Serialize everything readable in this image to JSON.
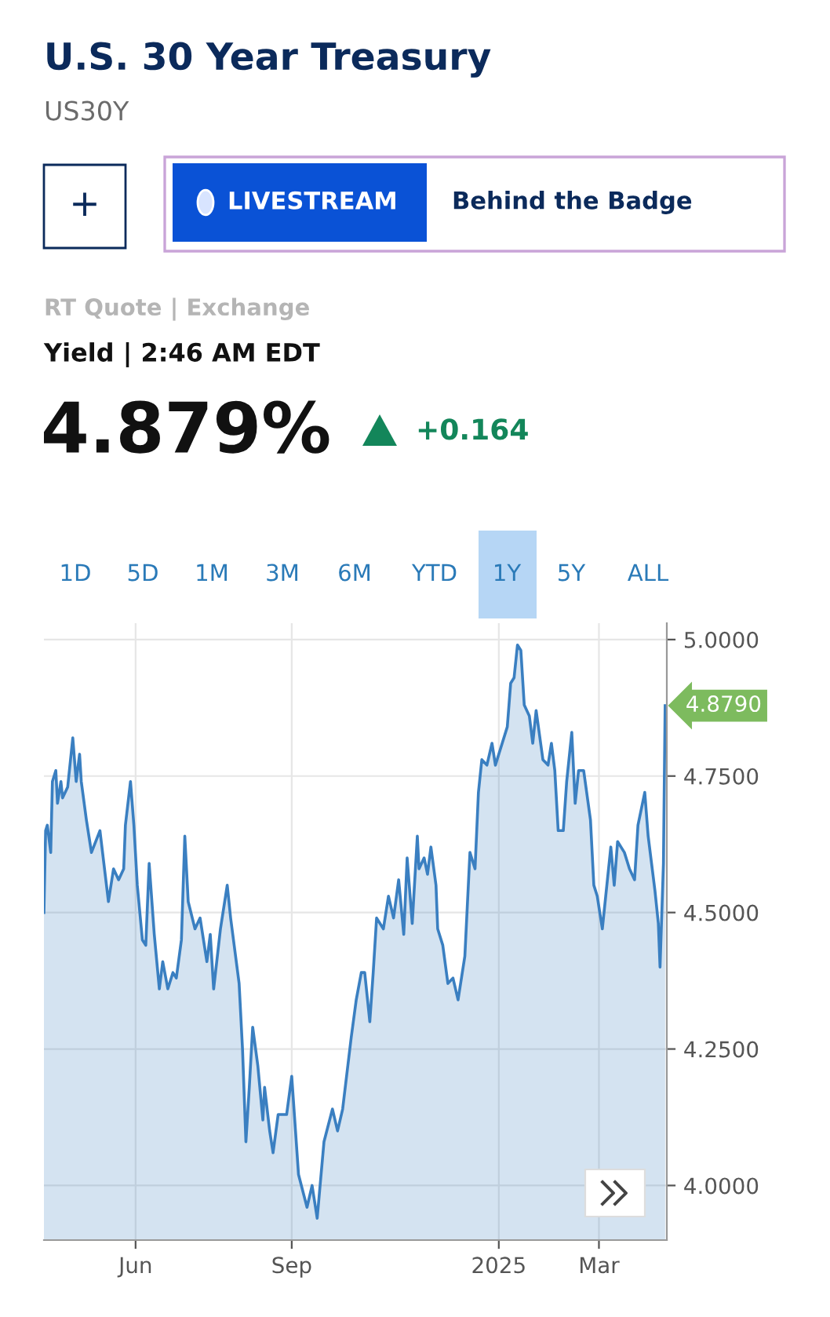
{
  "chart_data": {
    "type": "area",
    "title": "U.S. 30 Year Treasury",
    "subtitle": "US30Y",
    "annotations": [
      "+",
      "LIVESTREAM",
      "Behind the Badge",
      "RT Quote | Exchange",
      "Yield | 2:46 AM EDT",
      "4.879%",
      "+0.164",
      "1D",
      "5D",
      "1M",
      "3M",
      "6M",
      "YTD",
      "1Y",
      "5Y",
      "ALL",
      {
        "text": "4.8790",
        "x": "2025-04-09",
        "y": 4.879
      }
    ],
    "x": [
      "2024-04-08",
      "2024-04-09",
      "2024-04-10",
      "2024-04-12",
      "2024-04-13",
      "2024-04-15",
      "2024-04-16",
      "2024-04-18",
      "2024-04-19",
      "2024-04-22",
      "2024-04-25",
      "2024-04-27",
      "2024-04-29",
      "2024-04-30",
      "2024-05-03",
      "2024-05-06",
      "2024-05-11",
      "2024-05-16",
      "2024-05-19",
      "2024-05-22",
      "2024-05-25",
      "2024-05-26",
      "2024-05-29",
      "2024-05-31",
      "2024-06-02",
      "2024-06-05",
      "2024-06-07",
      "2024-06-09",
      "2024-06-12",
      "2024-06-15",
      "2024-06-17",
      "2024-06-20",
      "2024-06-23",
      "2024-06-25",
      "2024-06-28",
      "2024-06-30",
      "2024-07-02",
      "2024-07-06",
      "2024-07-09",
      "2024-07-13",
      "2024-07-15",
      "2024-07-17",
      "2024-07-21",
      "2024-07-25",
      "2024-07-27",
      "2024-08-01",
      "2024-08-03",
      "2024-08-05",
      "2024-08-07",
      "2024-08-09",
      "2024-08-12",
      "2024-08-15",
      "2024-08-16",
      "2024-08-19",
      "2024-08-21",
      "2024-08-24",
      "2024-08-29",
      "2024-09-01",
      "2024-09-05",
      "2024-09-10",
      "2024-09-13",
      "2024-09-16",
      "2024-09-20",
      "2024-09-25",
      "2024-09-28",
      "2024-10-01",
      "2024-10-06",
      "2024-10-09",
      "2024-10-12",
      "2024-10-14",
      "2024-10-17",
      "2024-10-19",
      "2024-10-21",
      "2024-10-25",
      "2024-10-28",
      "2024-10-31",
      "2024-11-03",
      "2024-11-06",
      "2024-11-08",
      "2024-11-11",
      "2024-11-14",
      "2024-11-15",
      "2024-11-18",
      "2024-11-20",
      "2024-11-22",
      "2024-11-25",
      "2024-11-26",
      "2024-11-29",
      "2024-12-02",
      "2024-12-05",
      "2024-12-08",
      "2024-12-12",
      "2024-12-15",
      "2024-12-18",
      "2024-12-20",
      "2024-12-22",
      "2024-12-25",
      "2024-12-28",
      "2024-12-30",
      "2025-01-02",
      "2025-01-06",
      "2025-01-08",
      "2025-01-10",
      "2025-01-12",
      "2025-01-14",
      "2025-01-16",
      "2025-01-19",
      "2025-01-21",
      "2025-01-23",
      "2025-01-27",
      "2025-01-30",
      "2025-02-01",
      "2025-02-03",
      "2025-02-05",
      "2025-02-08",
      "2025-02-10",
      "2025-02-13",
      "2025-02-15",
      "2025-02-17",
      "2025-02-20",
      "2025-02-24",
      "2025-02-26",
      "2025-02-28",
      "2025-03-03",
      "2025-03-05",
      "2025-03-08",
      "2025-03-10",
      "2025-03-12",
      "2025-03-16",
      "2025-03-19",
      "2025-03-22",
      "2025-03-24",
      "2025-03-28",
      "2025-03-30",
      "2025-04-03",
      "2025-04-05",
      "2025-04-06",
      "2025-04-08",
      "2025-04-09"
    ],
    "series": [
      {
        "color": "#3a7fc1",
        "values": [
          4.5,
          4.65,
          4.66,
          4.61,
          4.74,
          4.76,
          4.7,
          4.74,
          4.71,
          4.73,
          4.82,
          4.74,
          4.79,
          4.74,
          4.67,
          4.61,
          4.65,
          4.52,
          4.58,
          4.56,
          4.58,
          4.66,
          4.74,
          4.66,
          4.55,
          4.45,
          4.44,
          4.59,
          4.46,
          4.36,
          4.41,
          4.36,
          4.39,
          4.38,
          4.45,
          4.64,
          4.52,
          4.47,
          4.49,
          4.41,
          4.46,
          4.36,
          4.47,
          4.55,
          4.49,
          4.37,
          4.25,
          4.08,
          4.18,
          4.29,
          4.22,
          4.12,
          4.18,
          4.1,
          4.06,
          4.13,
          4.13,
          4.2,
          4.02,
          3.96,
          4.0,
          3.94,
          4.08,
          4.14,
          4.1,
          4.14,
          4.27,
          4.34,
          4.39,
          4.39,
          4.3,
          4.39,
          4.49,
          4.47,
          4.53,
          4.49,
          4.56,
          4.46,
          4.6,
          4.48,
          4.64,
          4.58,
          4.6,
          4.57,
          4.62,
          4.55,
          4.47,
          4.44,
          4.37,
          4.38,
          4.34,
          4.42,
          4.61,
          4.58,
          4.72,
          4.78,
          4.77,
          4.81,
          4.77,
          4.8,
          4.84,
          4.92,
          4.93,
          4.99,
          4.98,
          4.88,
          4.86,
          4.81,
          4.87,
          4.78,
          4.77,
          4.81,
          4.76,
          4.65,
          4.65,
          4.74,
          4.83,
          4.7,
          4.76,
          4.76,
          4.67,
          4.55,
          4.53,
          4.47,
          4.53,
          4.62,
          4.55,
          4.63,
          4.61,
          4.58,
          4.56,
          4.66,
          4.72,
          4.64,
          4.54,
          4.48,
          4.4,
          4.59,
          4.879
        ]
      }
    ],
    "xlim": [
      "2024-04-08",
      "2025-04-10"
    ],
    "xticks": [
      {
        "value": "2024-06-01",
        "label": "Jun"
      },
      {
        "value": "2024-09-01",
        "label": "Sep"
      },
      {
        "value": "2025-01-01",
        "label": "2025"
      },
      {
        "value": "2025-03-01",
        "label": "Mar"
      }
    ],
    "ylim": [
      3.9,
      5.03
    ],
    "yticks": [
      {
        "value": 4,
        "label": "4.0000"
      },
      {
        "value": 4.25,
        "label": "4.2500"
      },
      {
        "value": 4.5,
        "label": "4.5000"
      },
      {
        "value": 4.75,
        "label": "4.7500"
      },
      {
        "value": 5,
        "label": "5.0000"
      }
    ],
    "grid": true
  }
}
